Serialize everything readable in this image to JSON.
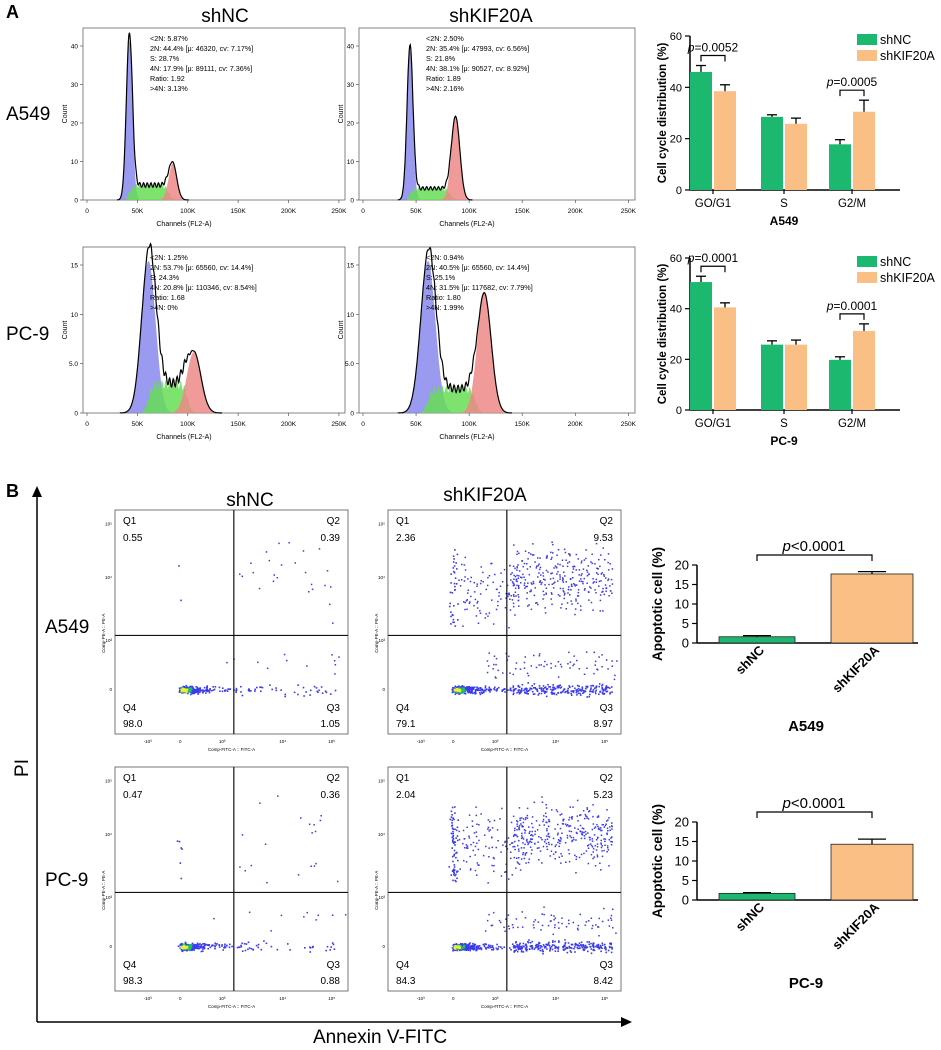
{
  "panel_labels": {
    "a": "A",
    "b": "B"
  },
  "colors": {
    "shNC": "#1db86f",
    "shKIF20A": "#f9bf84",
    "g1_peak": "#8888ee",
    "s_phase": "#66dd55",
    "g2_peak": "#ee8888",
    "dot": "#3a3aee",
    "dense": "#22bb66"
  },
  "section_a": {
    "column_titles": [
      "shNC",
      "shKIF20A"
    ],
    "row_labels": [
      "A549",
      "PC-9"
    ],
    "hist_xlabel": "Channels (FL2-A)",
    "hist_ylabel": "Count",
    "hist_xticks": [
      "0",
      "50K",
      "100K",
      "150K",
      "200K",
      "250K"
    ],
    "hist_yticks_a549": [
      "0",
      "10",
      "20",
      "30",
      "40"
    ],
    "hist_yticks_pc9": [
      "0",
      "5.0",
      "10",
      "15"
    ],
    "histograms": [
      {
        "id": "a549-shnc",
        "stats": [
          "<2N: 5.87%",
          "2N: 44.4%  [μ: 46320, cv: 7.17%]",
          "S: 28.7%",
          "4N: 17.9%  [μ: 89111, cv: 7.36%]",
          "Ratio: 1.92",
          ">4N: 3.13%"
        ]
      },
      {
        "id": "a549-shkif20a",
        "stats": [
          "<2N: 2.50%",
          "2N: 35.4%  [μ: 47993, cv: 6.56%]",
          "S: 21.8%",
          "4N: 38.1%  [μ: 90527, cv: 8.92%]",
          "Ratio: 1.89",
          ">4N: 2.16%"
        ]
      },
      {
        "id": "pc9-shnc",
        "stats": [
          "<2N: 1.25%",
          "2N: 53.7%  [μ: 65560, cv: 14.4%]",
          "S: 24.3%",
          "4N: 20.8%  [μ: 110346, cv: 8.54%]",
          "Ratio: 1.68",
          ">4N: 0%"
        ]
      },
      {
        "id": "pc9-shkif20a",
        "stats": [
          "<2N: 0.94%",
          "2N: 40.5%  [μ: 65560, cv: 14.4%]",
          "S: 25.1%",
          "4N: 31.5%  [μ: 117682, cv: 7.79%]",
          "Ratio: 1.80",
          ">4N: 1.99%"
        ]
      }
    ]
  },
  "section_b": {
    "column_titles": [
      "shNC",
      "shKIF20A"
    ],
    "row_labels": [
      "A549",
      "PC-9"
    ],
    "axis_y": "PI",
    "axis_x": "Annexin V-FITC",
    "scatter_xlabel": "Comp-FITC-A :: FITC-A",
    "scatter_ylabel": "Comp-PE-A :: PE-A",
    "scatter_xticks": [
      "-10³",
      "0",
      "10³",
      "10⁴",
      "10⁵"
    ],
    "scatter_yticks": [
      "0",
      "10³",
      "10⁴",
      "10⁵"
    ],
    "plots": [
      {
        "id": "a549-shnc",
        "q1": [
          "Q1",
          "0.55"
        ],
        "q2": [
          "Q2",
          "0.39"
        ],
        "q3": [
          "Q3",
          "1.05"
        ],
        "q4": [
          "Q4",
          "98.0"
        ]
      },
      {
        "id": "a549-shkif20a",
        "q1": [
          "Q1",
          "2.36"
        ],
        "q2": [
          "Q2",
          "9.53"
        ],
        "q3": [
          "Q3",
          "8.97"
        ],
        "q4": [
          "Q4",
          "79.1"
        ]
      },
      {
        "id": "pc9-shnc",
        "q1": [
          "Q1",
          "0.47"
        ],
        "q2": [
          "Q2",
          "0.36"
        ],
        "q3": [
          "Q3",
          "0.88"
        ],
        "q4": [
          "Q4",
          "98.3"
        ]
      },
      {
        "id": "pc9-shkif20a",
        "q1": [
          "Q1",
          "2.04"
        ],
        "q2": [
          "Q2",
          "5.23"
        ],
        "q3": [
          "Q3",
          "8.42"
        ],
        "q4": [
          "Q4",
          "84.3"
        ]
      }
    ]
  },
  "chart_data": [
    {
      "type": "bar",
      "title": "A549",
      "ylabel": "Cell cycle distribution (%)",
      "xlabel": "A549",
      "categories": [
        "GO/G1",
        "S",
        "G2/M"
      ],
      "ylim": [
        0,
        60
      ],
      "yticks": [
        0,
        20,
        40,
        60
      ],
      "series": [
        {
          "name": "shNC",
          "values": [
            46,
            28.5,
            17.8
          ],
          "errors": [
            2.5,
            0.8,
            1.8
          ]
        },
        {
          "name": "shKIF20A",
          "values": [
            38.5,
            25.8,
            30.5
          ],
          "errors": [
            2.5,
            2.2,
            4.5
          ]
        }
      ],
      "annotations": [
        {
          "text": "p=0.0052",
          "category": 0
        },
        {
          "text": "p=0.0005",
          "category": 2
        }
      ],
      "legend": "top-right"
    },
    {
      "type": "bar",
      "title": "PC-9",
      "ylabel": "Cell cycle distribution (%)",
      "xlabel": "PC-9",
      "categories": [
        "GO/G1",
        "S",
        "G2/M"
      ],
      "ylim": [
        0,
        60
      ],
      "yticks": [
        0,
        20,
        40,
        60
      ],
      "series": [
        {
          "name": "shNC",
          "values": [
            50.5,
            25.8,
            19.8
          ],
          "errors": [
            2.3,
            1.5,
            1.2
          ]
        },
        {
          "name": "shKIF20A",
          "values": [
            40.5,
            25.8,
            31.2
          ],
          "errors": [
            1.8,
            1.8,
            2.8
          ]
        }
      ],
      "annotations": [
        {
          "text": "p=0.0001",
          "category": 0
        },
        {
          "text": "p=0.0001",
          "category": 2
        }
      ],
      "legend": "top-right"
    },
    {
      "type": "bar",
      "title": "A549",
      "ylabel": "Apoptotic cell (%)",
      "xlabel": "A549",
      "categories": [
        "shNC",
        "shKIF20A"
      ],
      "ylim": [
        0,
        20
      ],
      "yticks": [
        0,
        5,
        10,
        15,
        20
      ],
      "values": [
        1.6,
        17.7
      ],
      "errors": [
        0.3,
        0.6
      ],
      "annotation": "p<0.0001"
    },
    {
      "type": "bar",
      "title": "PC-9",
      "ylabel": "Apoptotic cell (%)",
      "xlabel": "PC-9",
      "categories": [
        "shNC",
        "shKIF20A"
      ],
      "ylim": [
        0,
        20
      ],
      "yticks": [
        0,
        5,
        10,
        15,
        20
      ],
      "values": [
        1.7,
        14.3
      ],
      "errors": [
        0.2,
        1.3
      ],
      "annotation": "p<0.0001"
    }
  ]
}
